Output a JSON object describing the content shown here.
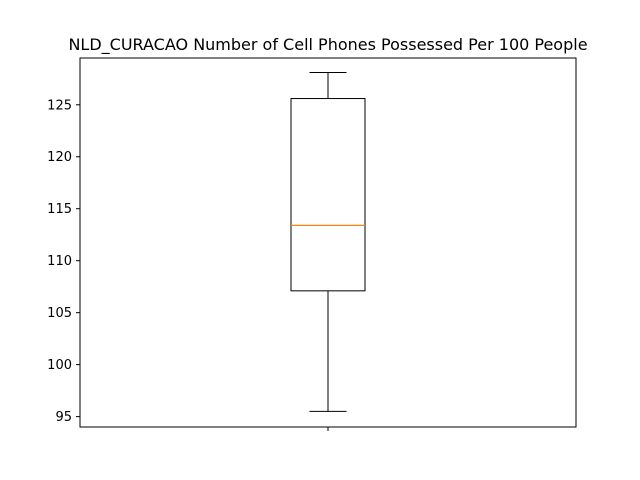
{
  "chart_data": {
    "type": "boxplot",
    "title": "NLD_CURACAO Number of Cell Phones Possessed Per 100 People",
    "xlabel": "",
    "ylabel": "",
    "ylim": [
      94.0,
      129.5
    ],
    "yticks": [
      95,
      100,
      105,
      110,
      115,
      120,
      125
    ],
    "box": {
      "whisker_low": 95.5,
      "q1": 107.1,
      "median": 113.4,
      "q3": 125.6,
      "whisker_high": 128.1
    },
    "colors": {
      "median": "#ff7f0e",
      "box": "#000000"
    },
    "grid": false
  }
}
